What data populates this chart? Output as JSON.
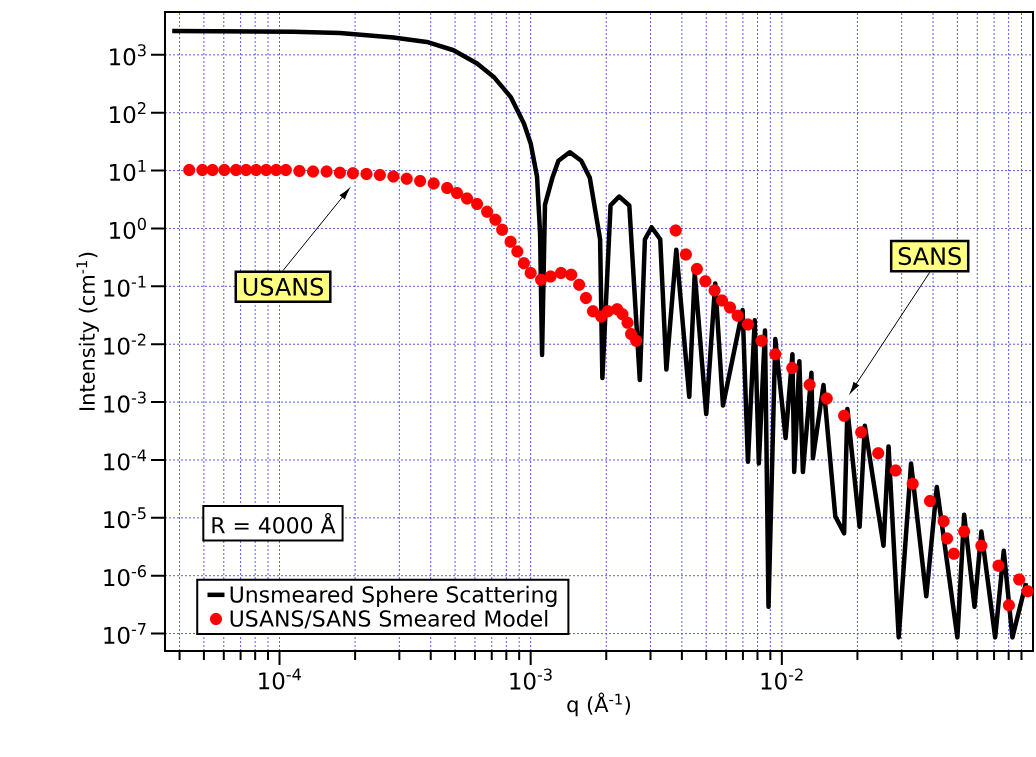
{
  "chart_data": {
    "type": "line",
    "xlabel": "q (Å$^{-1}$)",
    "ylabel": "Intensity (cm$^{-1}$)",
    "log": "xy",
    "grid": true,
    "legend": "bottom left",
    "xlim": [
      3.5e-05,
      0.1
    ],
    "ylim": [
      5e-08,
      5500
    ],
    "xticks": [
      {
        "value": 0.0001,
        "label": "10$^{-4}$"
      },
      {
        "value": 0.001,
        "label": "10$^{-3}$"
      },
      {
        "value": 0.01,
        "label": "10$^{-2}$"
      }
    ],
    "yticks": [
      {
        "value": 1e-07,
        "label": "10$^{-7}$"
      },
      {
        "value": 1e-06,
        "label": "10$^{-6}$"
      },
      {
        "value": 1e-05,
        "label": "10$^{-5}$"
      },
      {
        "value": 0.0001,
        "label": "10$^{-4}$"
      },
      {
        "value": 0.001,
        "label": "10$^{-3}$"
      },
      {
        "value": 0.01,
        "label": "10$^{-2}$"
      },
      {
        "value": 0.1,
        "label": "10$^{-1}$"
      },
      {
        "value": 1,
        "label": "10$^{0}$"
      },
      {
        "value": 10,
        "label": "10$^{1}$"
      },
      {
        "value": 100,
        "label": "10$^{2}$"
      },
      {
        "value": 1000,
        "label": "10$^{3}$"
      }
    ],
    "series": [
      {
        "name": "Unsmeared Sphere Scattering",
        "color": "#000000",
        "line_style": "solid",
        "marker": "none",
        "x": [
          3.74e-05,
          0.000113,
          0.000174,
          0.000284,
          0.000386,
          0.000493,
          0.000612,
          0.000713,
          0.000832,
          0.00094,
          0.001,
          0.00106,
          0.00109,
          0.00111,
          0.00114,
          0.00122,
          0.00129,
          0.00143,
          0.00159,
          0.00172,
          0.00189,
          0.00193,
          0.00208,
          0.00225,
          0.00247,
          0.00272,
          0.00285,
          0.00303,
          0.00328,
          0.00347,
          0.0038,
          0.00428,
          0.0045,
          0.005,
          0.00543,
          0.00583,
          0.00698,
          0.00733,
          0.0078,
          0.0081,
          0.00857,
          0.00885,
          0.00942,
          0.01035,
          0.01102,
          0.0112,
          0.01174,
          0.01213,
          0.01312,
          0.0133,
          0.01465,
          0.01633,
          0.0177,
          0.01824,
          0.0204,
          0.0214,
          0.0254,
          0.0266,
          0.0292,
          0.0327,
          0.0376,
          0.0414,
          0.05,
          0.0532,
          0.0585,
          0.0623,
          0.0707,
          0.0765,
          0.0828,
          0.0938
        ],
        "values": [
          2580,
          2500,
          2390,
          1990,
          1670,
          1200,
          708,
          416,
          188,
          65,
          29.5,
          7.9,
          0.84,
          0.0065,
          2.55,
          7.5,
          14.8,
          20.8,
          14.8,
          7.5,
          0.65,
          0.0026,
          2.5,
          3.56,
          2.5,
          0.0024,
          0.65,
          1.05,
          0.65,
          0.00365,
          0.43,
          0.00123,
          0.168,
          0.00062,
          0.112,
          0.00087,
          0.039,
          9.3e-05,
          0.026,
          8.7e-05,
          0.0173,
          2.9e-07,
          0.0123,
          0.00024,
          0.0067,
          6.2e-05,
          0.0051,
          6.2e-05,
          0.0032,
          0.000107,
          0.00197,
          1.06e-05,
          5.4e-06,
          0.00076,
          7e-06,
          0.00039,
          3.3e-06,
          0.000171,
          8.6e-08,
          8.7e-05,
          4.4e-07,
          3.4e-05,
          8.6e-08,
          1.13e-05,
          2.9e-07,
          5.8e-06,
          8.6e-08,
          2.7e-06,
          8.6e-08,
          7.5e-07
        ]
      },
      {
        "name": "USANS/SANS Smeared Model",
        "type": "scatter",
        "color": "#ff0000",
        "marker": "circle",
        "x": [
          4.37e-05,
          4.93e-05,
          5.41e-05,
          6.03e-05,
          6.71e-05,
          7.36e-05,
          8.07e-05,
          8.85e-05,
          9.7e-05,
          0.000106,
          0.00012,
          0.000136,
          0.000154,
          0.000174,
          0.000196,
          0.000222,
          0.000251,
          0.000284,
          0.000321,
          0.000363,
          0.000411,
          0.000465,
          0.000509,
          0.000558,
          0.000612,
          0.000671,
          0.000724,
          0.00077,
          0.000832,
          0.000885,
          0.00094,
          0.001,
          0.0011,
          0.0012,
          0.00132,
          0.00145,
          0.00156,
          0.00166,
          0.00177,
          0.00191,
          0.00203,
          0.00221,
          0.00232,
          0.00243,
          0.00251,
          0.00263,
          0.00378,
          0.00415,
          0.00459,
          0.00496,
          0.0054,
          0.00578,
          0.00622,
          0.00667,
          0.00733,
          0.0083,
          0.00942,
          0.011,
          0.0129,
          0.0151,
          0.0177,
          0.0207,
          0.0242,
          0.0284,
          0.0332,
          0.0389,
          0.0441,
          0.0455,
          0.0484,
          0.0532,
          0.0623,
          0.0729,
          0.0802,
          0.0881,
          0.0953
        ],
        "values": [
          10.2,
          10.2,
          10.2,
          10.2,
          10.2,
          10.2,
          10.2,
          10.2,
          10.2,
          10.2,
          9.8,
          9.6,
          9.6,
          9.2,
          9.0,
          8.7,
          8.4,
          7.9,
          7.2,
          6.6,
          6.0,
          5.0,
          4.1,
          3.3,
          2.65,
          1.95,
          1.41,
          0.95,
          0.59,
          0.4,
          0.25,
          0.17,
          0.13,
          0.148,
          0.17,
          0.158,
          0.107,
          0.063,
          0.037,
          0.03,
          0.037,
          0.04,
          0.033,
          0.0235,
          0.015,
          0.0115,
          0.92,
          0.355,
          0.2,
          0.123,
          0.085,
          0.057,
          0.043,
          0.031,
          0.022,
          0.0115,
          0.0067,
          0.0039,
          0.002,
          0.00115,
          0.00058,
          0.0003,
          0.000131,
          6.6e-05,
          3.9e-05,
          1.95e-05,
          8.7e-06,
          4.4e-06,
          2.4e-06,
          5.8e-06,
          3.3e-06,
          1.48e-06,
          3.1e-07,
          8.6e-07,
          5.4e-07
        ]
      }
    ],
    "annotations": [
      "USANS",
      "SANS",
      "R = 4000 Å"
    ]
  }
}
